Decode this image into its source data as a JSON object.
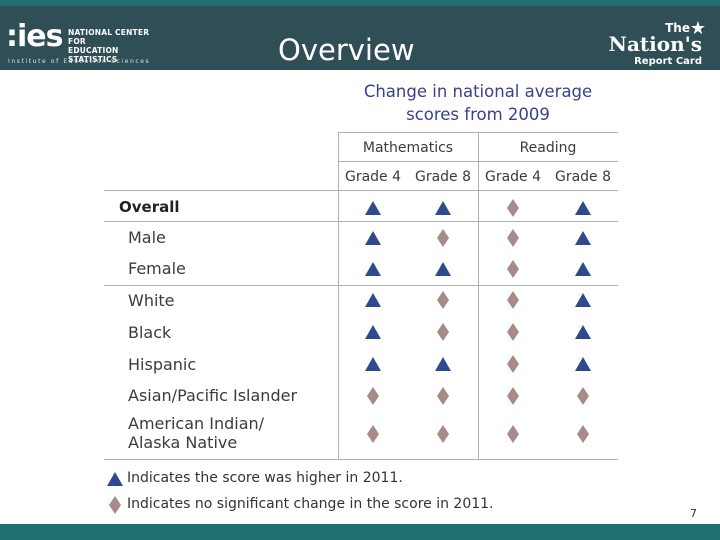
{
  "header": {
    "ies_mark": ":ies",
    "ies_name_line1": "NATIONAL CENTER FOR",
    "ies_name_line2": "EDUCATION STATISTICS",
    "ies_subtitle": "Institute of Education Sciences",
    "title": "Overview",
    "nrc_the": "The",
    "nrc_nations": "Nation's",
    "nrc_report": "Report Card"
  },
  "table": {
    "title_line1": "Change in national average",
    "title_line2": "scores from 2009",
    "subjects": [
      "Mathematics",
      "Reading"
    ],
    "grades": [
      "Grade 4",
      "Grade 8",
      "Grade 4",
      "Grade 8"
    ],
    "rows": [
      {
        "label": "Overall",
        "values": [
          "up",
          "up",
          "same",
          "up"
        ]
      },
      {
        "label": "Male",
        "values": [
          "up",
          "same",
          "same",
          "up"
        ]
      },
      {
        "label": "Female",
        "values": [
          "up",
          "up",
          "same",
          "up"
        ]
      },
      {
        "label": "White",
        "values": [
          "up",
          "same",
          "same",
          "up"
        ]
      },
      {
        "label": "Black",
        "values": [
          "up",
          "same",
          "same",
          "up"
        ]
      },
      {
        "label": "Hispanic",
        "values": [
          "up",
          "up",
          "same",
          "up"
        ]
      },
      {
        "label": "Asian/Pacific Islander",
        "values": [
          "same",
          "same",
          "same",
          "same"
        ]
      },
      {
        "label_line1": "American Indian/",
        "label_line2": "Alaska Native",
        "values": [
          "same",
          "same",
          "same",
          "same"
        ]
      }
    ]
  },
  "legend": {
    "up": "Indicates the score was higher in 2011.",
    "same": "Indicates no significant change in the score in 2011."
  },
  "colors": {
    "header": "#2f4e56",
    "stripe": "#1f6f70",
    "triangle": "#2f4a8a",
    "diamond": "#a78a8a",
    "title": "#3b3f8f"
  },
  "page_number": "7"
}
